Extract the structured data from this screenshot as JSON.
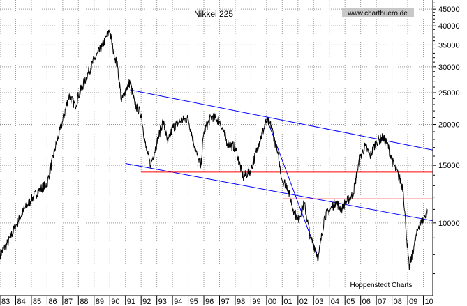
{
  "chart_data": {
    "type": "line",
    "title": "Nikkei 225",
    "watermark": "www.chartbuero.de",
    "source_note": "Hoppenstedt Charts",
    "scale": "log",
    "ylim": [
      6000,
      48000
    ],
    "xlim": [
      1983.0,
      2010.6
    ],
    "grid": true,
    "y_ticks": [
      10000,
      15000,
      20000,
      25000,
      30000,
      35000,
      40000,
      45000
    ],
    "y_tick_labels": [
      "10000",
      "15000",
      "20000",
      "25000",
      "30000",
      "35000",
      "40000",
      "45000"
    ],
    "x_ticks": [
      1983,
      1984,
      1985,
      1986,
      1987,
      1988,
      1989,
      1990,
      1991,
      1992,
      1993,
      1994,
      1995,
      1996,
      1997,
      1998,
      1999,
      2000,
      2001,
      2002,
      2003,
      2004,
      2005,
      2006,
      2007,
      2008,
      2009,
      2010
    ],
    "x_tick_labels": [
      "83",
      "84",
      "85",
      "86",
      "87",
      "88",
      "89",
      "90",
      "91",
      "92",
      "93",
      "94",
      "95",
      "96",
      "97",
      "98",
      "99",
      "00",
      "01",
      "02",
      "03",
      "04",
      "05",
      "06",
      "07",
      "08",
      "09",
      "10"
    ],
    "series": [
      {
        "color": "#000000",
        "x": [
          1983.0,
          1983.5,
          1984.0,
          1984.5,
          1985.0,
          1985.5,
          1986.0,
          1986.5,
          1987.0,
          1987.4,
          1987.8,
          1988.0,
          1988.5,
          1989.0,
          1989.5,
          1989.99,
          1990.2,
          1990.5,
          1990.75,
          1991.0,
          1991.3,
          1991.6,
          1992.0,
          1992.3,
          1992.6,
          1993.0,
          1993.4,
          1993.7,
          1994.0,
          1994.5,
          1995.0,
          1995.5,
          1995.8,
          1996.0,
          1996.5,
          1997.0,
          1997.5,
          1998.0,
          1998.5,
          1998.8,
          1999.0,
          1999.5,
          2000.0,
          2000.3,
          2000.7,
          2001.0,
          2001.3,
          2001.7,
          2002.0,
          2002.4,
          2002.8,
          2003.0,
          2003.3,
          2003.7,
          2004.0,
          2004.4,
          2004.8,
          2005.0,
          2005.5,
          2005.8,
          2006.0,
          2006.3,
          2006.6,
          2007.0,
          2007.4,
          2007.7,
          2008.0,
          2008.4,
          2008.7,
          2008.9,
          2009.1,
          2009.4,
          2009.7,
          2010.0,
          2010.25
        ],
        "values": [
          8000,
          8700,
          9800,
          10900,
          11800,
          12600,
          13200,
          16800,
          20500,
          24500,
          22800,
          24500,
          27800,
          31500,
          34500,
          38900,
          34000,
          30000,
          23500,
          25500,
          27000,
          23000,
          21500,
          17000,
          15000,
          17500,
          20500,
          17500,
          19500,
          20500,
          20800,
          16500,
          14800,
          19000,
          21200,
          20500,
          17500,
          17000,
          13800,
          14200,
          14500,
          17500,
          20500,
          19800,
          16300,
          13500,
          13000,
          11000,
          10200,
          11500,
          9000,
          8600,
          7800,
          10500,
          10900,
          11600,
          11000,
          11500,
          12200,
          14500,
          16000,
          17200,
          16000,
          17700,
          18200,
          17500,
          15500,
          14000,
          12800,
          9500,
          7200,
          8500,
          9800,
          10200,
          11000
        ]
      }
    ],
    "trendlines": [
      {
        "color": "#0000ff",
        "x": [
          1991.3,
          2010.6
        ],
        "y": [
          25500,
          16700
        ]
      },
      {
        "color": "#0000ff",
        "x": [
          1991.0,
          2010.6
        ],
        "y": [
          15200,
          10150
        ]
      },
      {
        "color": "#0000ff",
        "x": [
          2000.0,
          2003.2
        ],
        "y": [
          20900,
          8100
        ]
      },
      {
        "color": "#ff0000",
        "x": [
          1992.0,
          2010.6
        ],
        "y": [
          14300,
          14300
        ]
      },
      {
        "color": "#ff0000",
        "x": [
          2001.0,
          2010.6
        ],
        "y": [
          11850,
          11850
        ]
      }
    ]
  }
}
